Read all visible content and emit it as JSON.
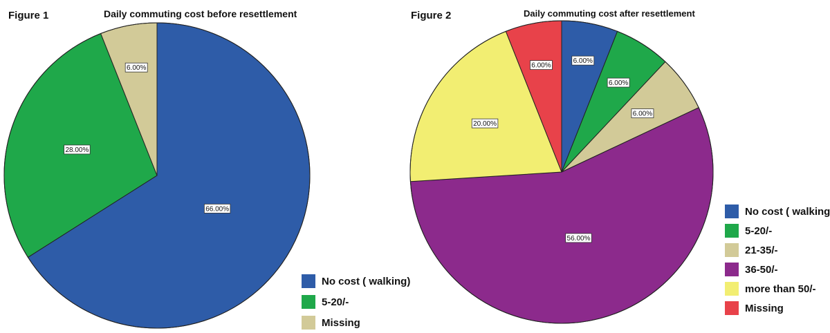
{
  "chart_data": [
    {
      "figure_label": "Figure 1",
      "type": "pie",
      "title": "Daily commuting cost before resettlement",
      "start_angle_deg": 0,
      "direction": "clockwise",
      "legend_position": "bottom-right",
      "slices": [
        {
          "label": "No cost ( walking)",
          "value": 66.0,
          "text": "66.00%",
          "color": "#2E5CA8"
        },
        {
          "label": "5-20/-",
          "value": 28.0,
          "text": "28.00%",
          "color": "#1FA84A"
        },
        {
          "label": "Missing",
          "value": 6.0,
          "text": "6.00%",
          "color": "#D2CA98"
        }
      ]
    },
    {
      "figure_label": "Figure 2",
      "type": "pie",
      "title": "Daily commuting cost after resettlement",
      "start_angle_deg": 0,
      "direction": "clockwise",
      "legend_position": "right",
      "slices": [
        {
          "label": "No cost ( walking)",
          "value": 6.0,
          "text": "6.00%",
          "color": "#2E5CA8"
        },
        {
          "label": "5-20/-",
          "value": 6.0,
          "text": "6.00%",
          "color": "#1FA84A"
        },
        {
          "label": "21-35/-",
          "value": 6.0,
          "text": "6.00%",
          "color": "#D2CA98"
        },
        {
          "label": "36-50/-",
          "value": 56.0,
          "text": "56.00%",
          "color": "#8C2A8C"
        },
        {
          "label": "more than 50/-",
          "value": 20.0,
          "text": "20.00%",
          "color": "#F2EE72"
        },
        {
          "label": "Missing",
          "value": 6.0,
          "text": "6.00%",
          "color": "#E8424A"
        }
      ]
    }
  ]
}
